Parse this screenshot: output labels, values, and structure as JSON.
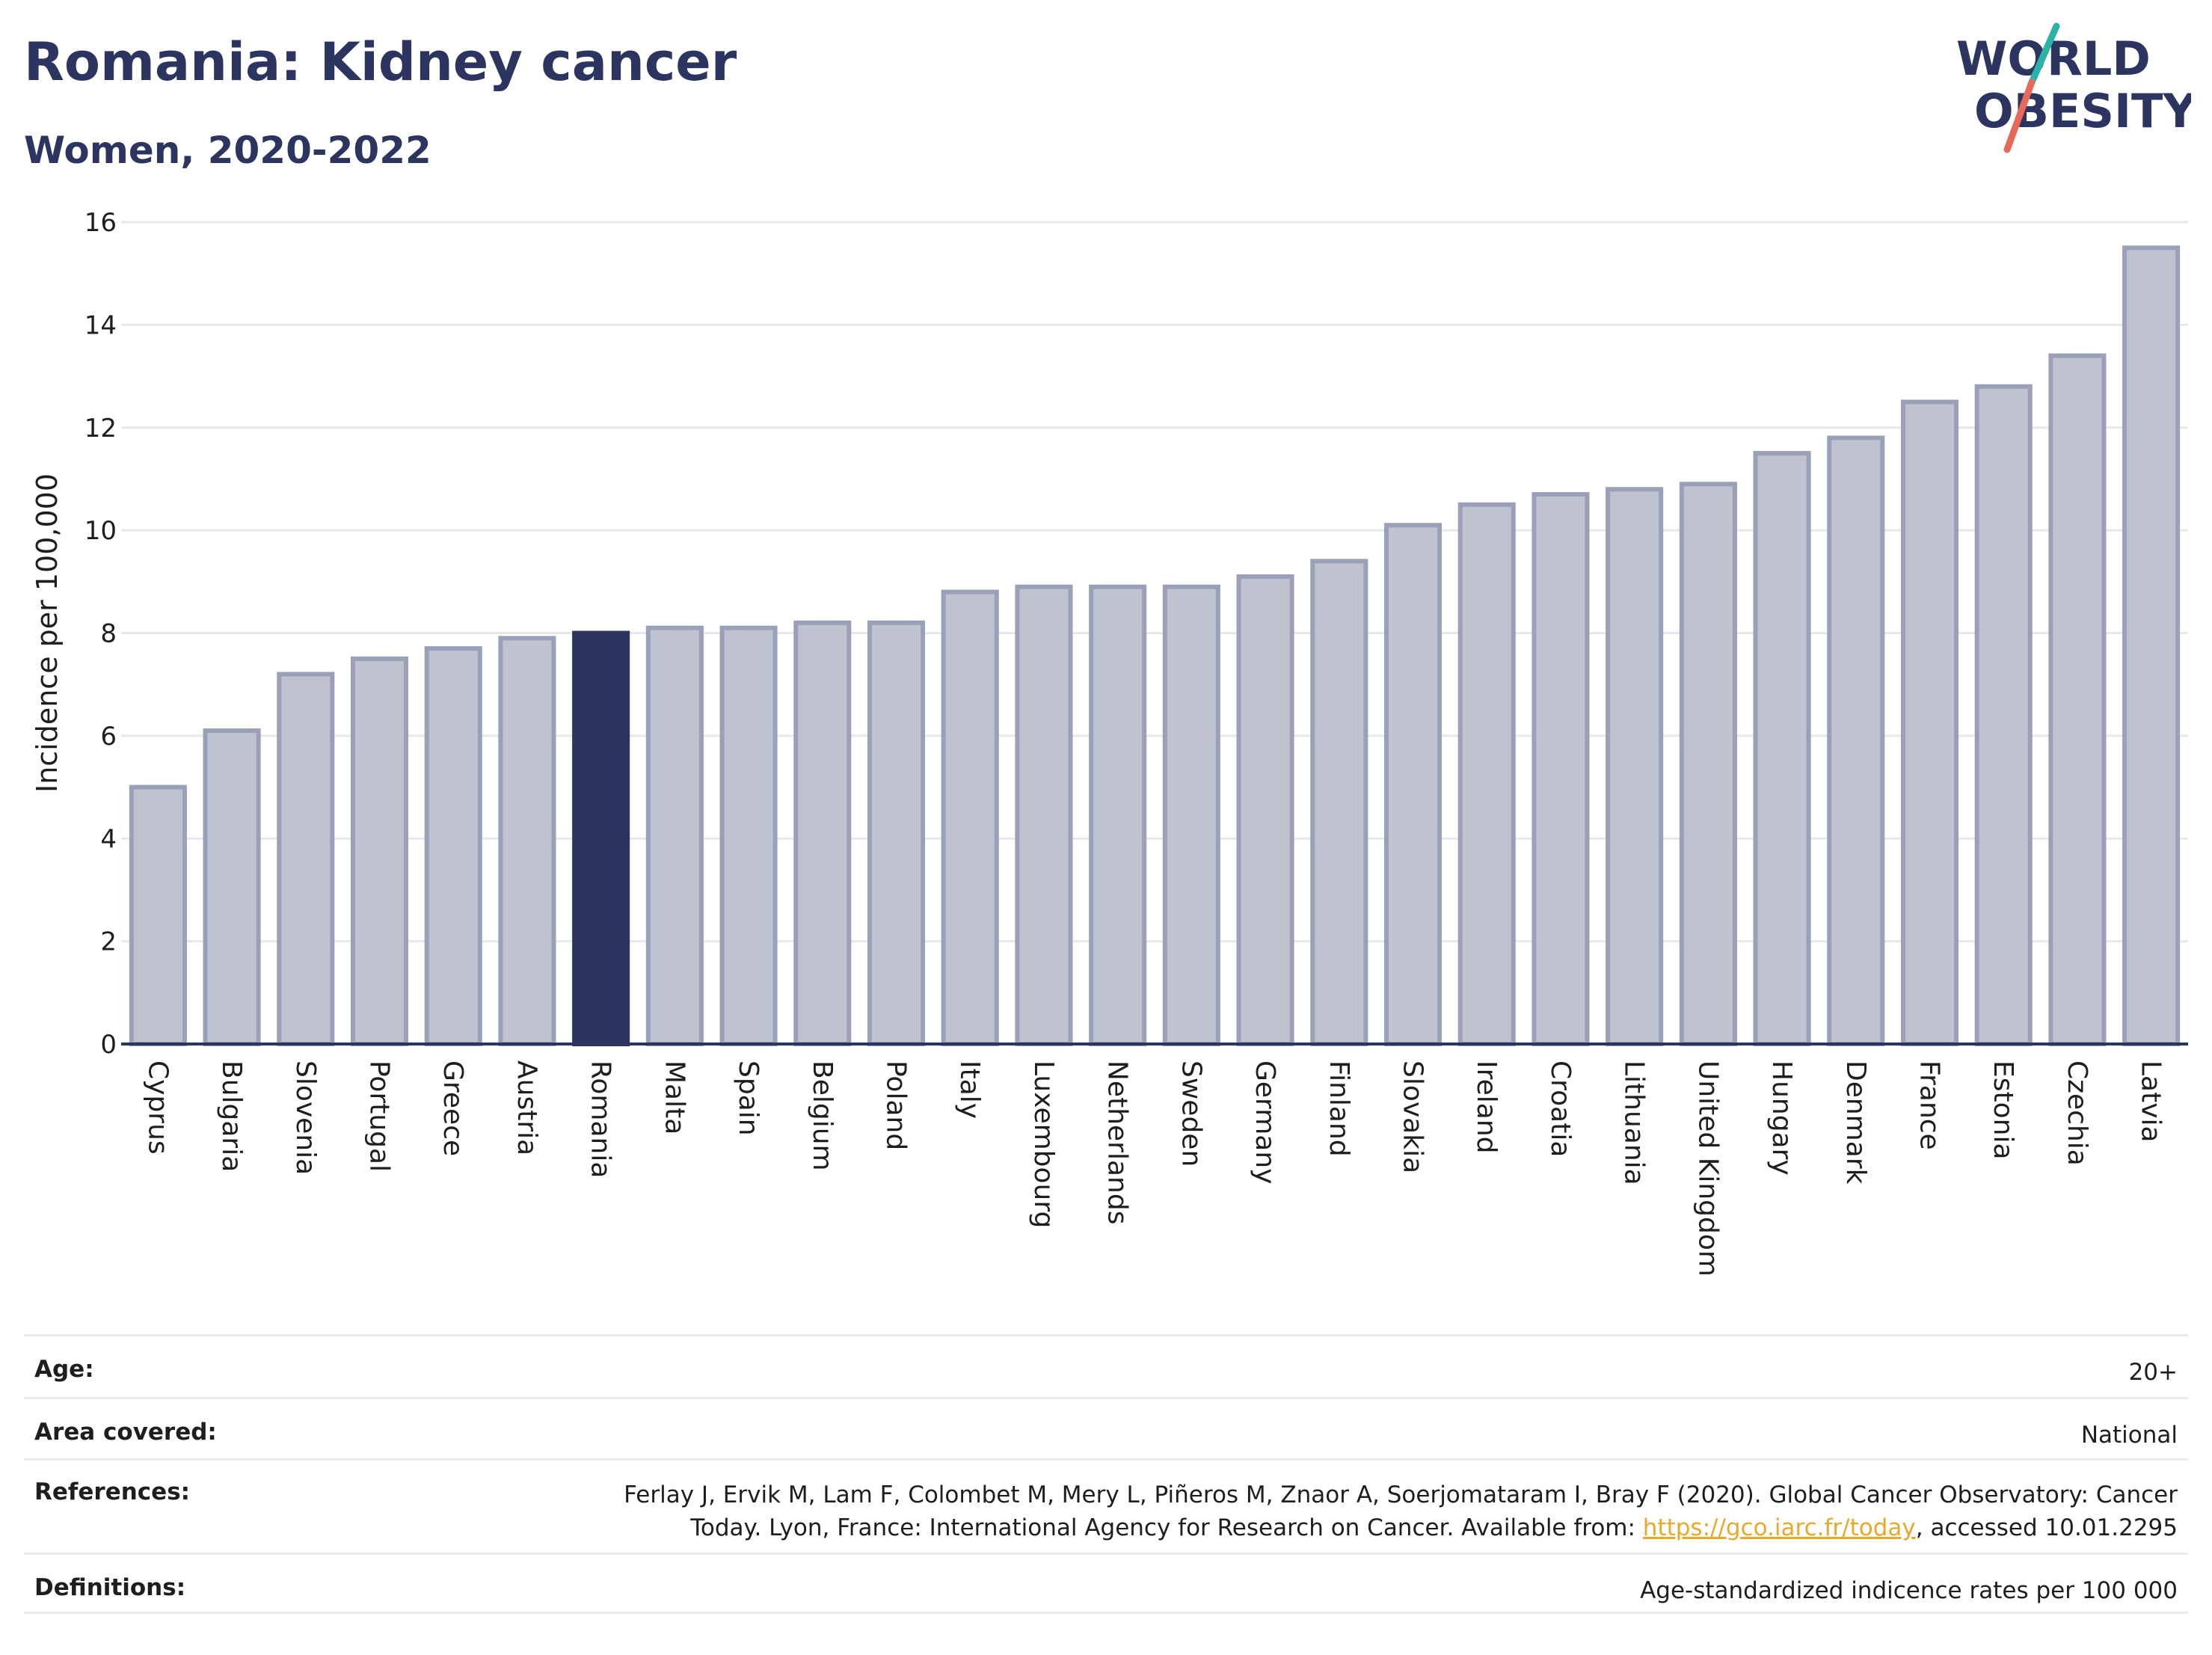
{
  "header": {
    "title": "Romania: Kidney cancer",
    "subtitle": "Women, 2020-2022"
  },
  "logo": {
    "line1": "WORLD",
    "line2": "OBESITY",
    "colors": {
      "text": "#2b3560",
      "slash_top": "#2ab3a6",
      "slash_bottom": "#e8685a"
    }
  },
  "chart_data": {
    "type": "bar",
    "categories": [
      "Cyprus",
      "Bulgaria",
      "Slovenia",
      "Portugal",
      "Greece",
      "Austria",
      "Romania",
      "Malta",
      "Spain",
      "Belgium",
      "Poland",
      "Italy",
      "Luxembourg",
      "Netherlands",
      "Sweden",
      "Germany",
      "Finland",
      "Slovakia",
      "Ireland",
      "Croatia",
      "Lithuania",
      "United Kingdom",
      "Hungary",
      "Denmark",
      "France",
      "Estonia",
      "Czechia",
      "Latvia"
    ],
    "values": [
      5.0,
      6.1,
      7.2,
      7.5,
      7.7,
      7.9,
      8.0,
      8.1,
      8.1,
      8.2,
      8.2,
      8.8,
      8.9,
      8.9,
      8.9,
      9.1,
      9.4,
      10.1,
      10.5,
      10.7,
      10.8,
      10.9,
      11.5,
      11.8,
      12.5,
      12.8,
      13.4,
      15.5
    ],
    "highlight": "Romania",
    "ylabel": "Incidence per 100,000",
    "ylim": [
      0,
      16
    ],
    "yticks": [
      0,
      2,
      4,
      6,
      8,
      10,
      12,
      14,
      16
    ],
    "grid": true,
    "colors": {
      "bar": "#bfc3d0",
      "bar_border": "#9aa0b8",
      "highlight": "#2b3560"
    }
  },
  "info": {
    "age_label": "Age:",
    "age_value": "20+",
    "area_label": "Area covered:",
    "area_value": "National",
    "references_label": "References:",
    "references_text_1": "Ferlay J, Ervik M, Lam F, Colombet M, Mery L, Piñeros M, Znaor A, Soerjomataram I, Bray F (2020). Global Cancer Observatory: Cancer",
    "references_text_2": "Today. Lyon, France: International Agency for Research on Cancer. Available from: ",
    "references_link": "https://gco.iarc.fr/today",
    "references_text_3": ", accessed 10.01.2295",
    "definitions_label": "Definitions:",
    "definitions_value": "Age-standardized indicence rates per 100 000"
  }
}
